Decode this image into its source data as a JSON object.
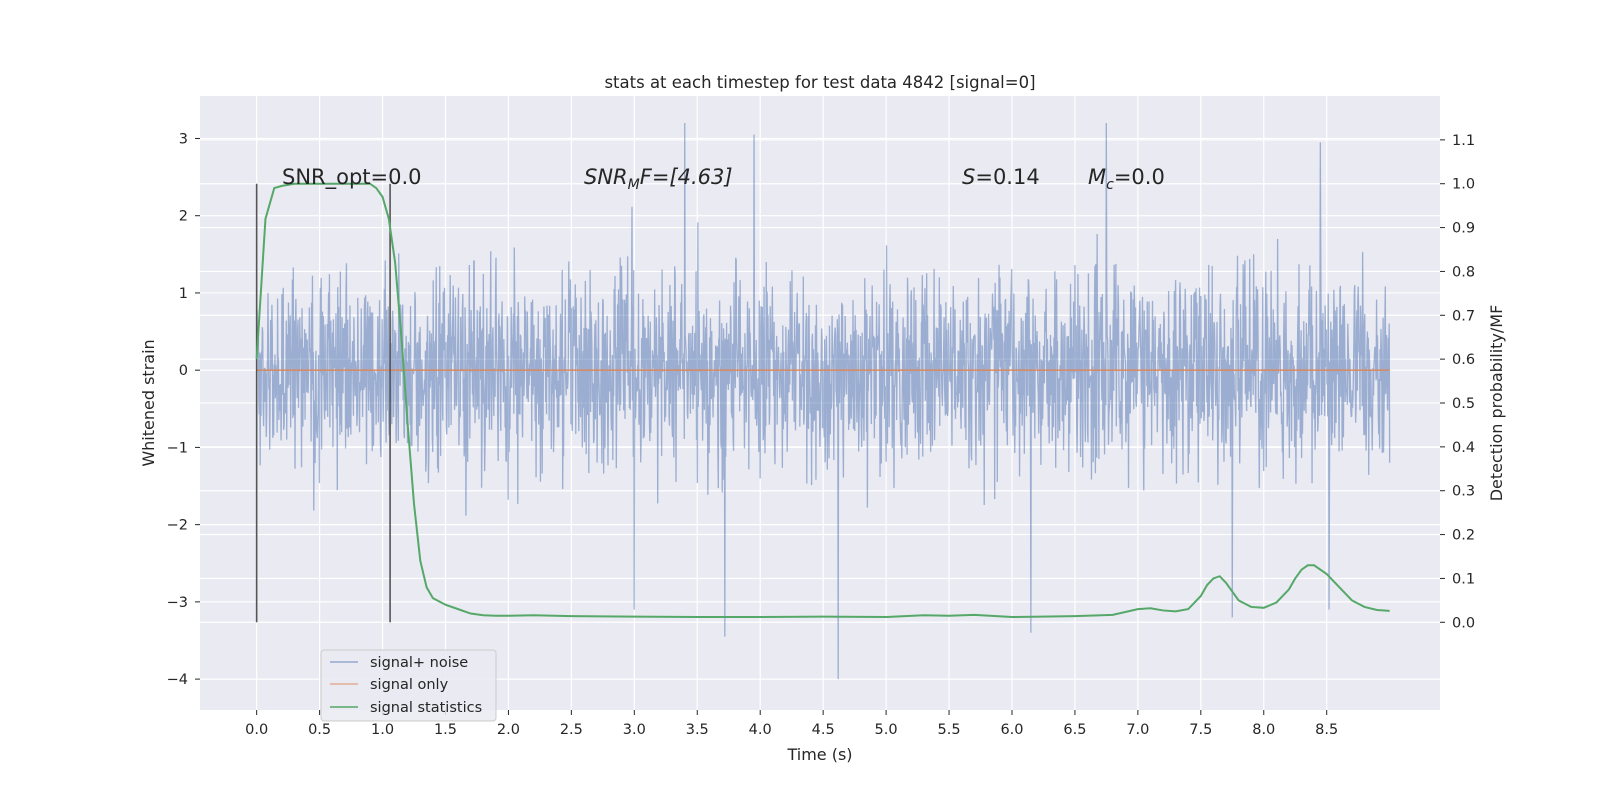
{
  "chart_data": {
    "type": "line",
    "title": "stats at each timestep for test data 4842 [signal=0]",
    "xlabel": "Time (s)",
    "ylabel": "Whitened strain",
    "ylabel_right": "Detection probability/MF",
    "xlim": [
      -0.45,
      9.4
    ],
    "ylim": [
      -4.4,
      3.55
    ],
    "ylim_right": [
      -0.2,
      1.2
    ],
    "x_ticks": [
      "0.0",
      "0.5",
      "1.0",
      "1.5",
      "2.0",
      "2.5",
      "3.0",
      "3.5",
      "4.0",
      "4.5",
      "5.0",
      "5.5",
      "6.0",
      "6.5",
      "7.0",
      "7.5",
      "8.0",
      "8.5"
    ],
    "y_ticks": [
      "3",
      "2",
      "1",
      "0",
      "−1",
      "−2",
      "−3",
      "−4"
    ],
    "y_ticks_right": [
      "1.1",
      "1.0",
      "0.9",
      "0.8",
      "0.7",
      "0.6",
      "0.5",
      "0.4",
      "0.3",
      "0.2",
      "0.1",
      "0.0"
    ],
    "grid": true,
    "legend_position": "lower-left",
    "annotations": {
      "snr_opt": "SNR_opt=0.0",
      "snr_mf_sym": "SNR",
      "snr_mf_sub": "M",
      "snr_mf_rest": "F=[4.63]",
      "s_sym": "S",
      "s_rest": "=0.14",
      "mc_sym": "M",
      "mc_sub": "c",
      "mc_rest": "=0.0"
    },
    "vlines_x": [
      0.0,
      1.06
    ],
    "series": [
      {
        "name": "signal+ noise",
        "color": "#4c72b0",
        "description_values": "noise band approx -2.0 to 2.2 with spikes up to 3.2 and down to -4.0",
        "spikes": [
          [
            3.4,
            3.2
          ],
          [
            3.95,
            3.05
          ],
          [
            6.75,
            3.2
          ],
          [
            8.45,
            2.95
          ],
          [
            4.62,
            -4.0
          ],
          [
            3.72,
            -3.45
          ],
          [
            6.15,
            -3.4
          ],
          [
            8.52,
            -3.1
          ],
          [
            3.0,
            -3.1
          ],
          [
            7.75,
            -3.2
          ]
        ]
      },
      {
        "name": "signal only",
        "color": "#dd8452",
        "x": [
          0.0,
          9.0
        ],
        "y": [
          0.0,
          0.0
        ]
      },
      {
        "name": "signal statistics",
        "color": "#55a868",
        "axis": "right",
        "x": [
          0.0,
          0.07,
          0.14,
          0.2,
          0.3,
          0.4,
          0.5,
          0.6,
          0.7,
          0.8,
          0.9,
          0.95,
          1.0,
          1.05,
          1.1,
          1.15,
          1.2,
          1.25,
          1.3,
          1.35,
          1.4,
          1.5,
          1.6,
          1.7,
          1.8,
          1.9,
          2.0,
          2.2,
          2.5,
          3.0,
          3.5,
          4.0,
          4.5,
          5.0,
          5.3,
          5.5,
          5.7,
          6.0,
          6.5,
          6.8,
          7.0,
          7.1,
          7.2,
          7.3,
          7.4,
          7.5,
          7.55,
          7.6,
          7.65,
          7.7,
          7.75,
          7.8,
          7.9,
          8.0,
          8.1,
          8.2,
          8.25,
          8.3,
          8.35,
          8.4,
          8.5,
          8.6,
          8.7,
          8.8,
          8.9,
          9.0
        ],
        "y": [
          0.6,
          0.92,
          0.99,
          0.995,
          1.0,
          1.0,
          1.0,
          1.0,
          1.0,
          1.0,
          1.0,
          0.99,
          0.97,
          0.92,
          0.82,
          0.65,
          0.45,
          0.27,
          0.14,
          0.08,
          0.055,
          0.04,
          0.03,
          0.02,
          0.016,
          0.015,
          0.015,
          0.016,
          0.014,
          0.013,
          0.012,
          0.012,
          0.013,
          0.012,
          0.016,
          0.015,
          0.017,
          0.012,
          0.014,
          0.017,
          0.03,
          0.032,
          0.027,
          0.025,
          0.03,
          0.06,
          0.085,
          0.1,
          0.105,
          0.09,
          0.07,
          0.05,
          0.035,
          0.033,
          0.045,
          0.075,
          0.1,
          0.12,
          0.13,
          0.13,
          0.11,
          0.08,
          0.05,
          0.035,
          0.028,
          0.026
        ]
      }
    ]
  }
}
